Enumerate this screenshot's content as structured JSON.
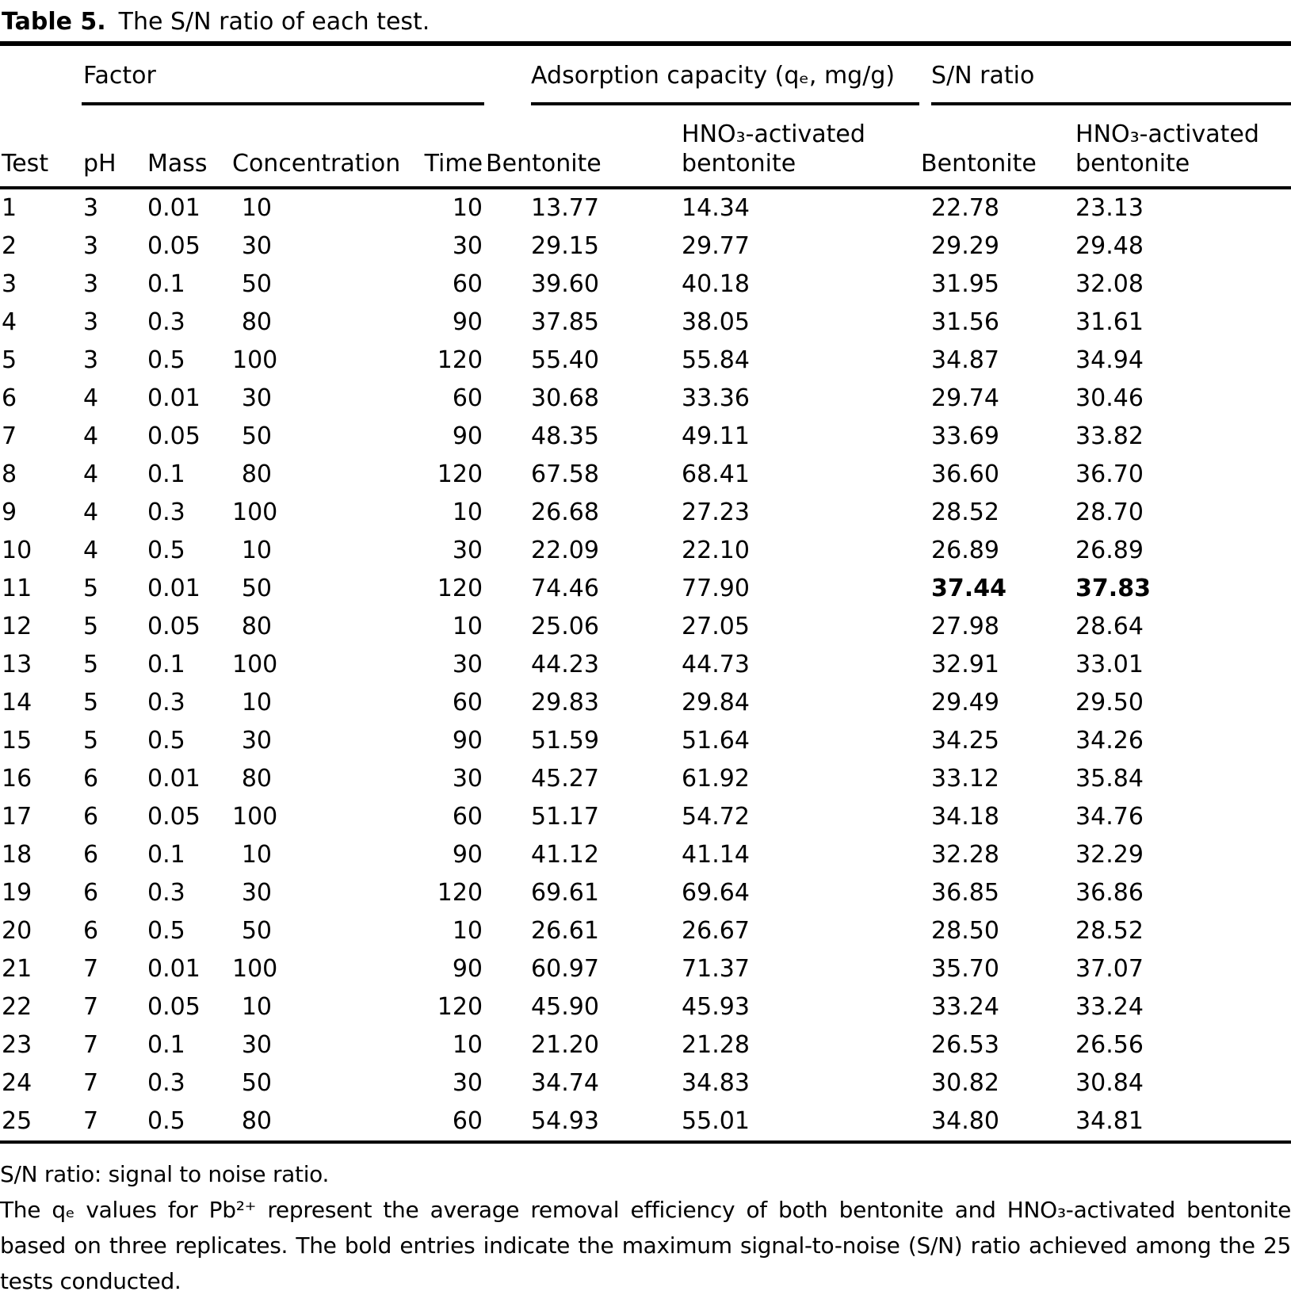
{
  "title": {
    "label": "Table 5.",
    "caption": "The S/N ratio of each test."
  },
  "table": {
    "group_headers": {
      "factor": "Factor",
      "adsorption": "Adsorption capacity (qₑ, mg/g)",
      "sn": "S/N ratio"
    },
    "columns": [
      "Test",
      "pH",
      "Mass",
      "Concentration",
      "Time",
      "Bentonite",
      "HNO₃-activated bentonite",
      "Bentonite",
      "HNO₃-activated bentonite"
    ],
    "max_sn_test": 11,
    "rows": [
      [
        "1",
        "3",
        "0.01",
        "10",
        "10",
        "13.77",
        "14.34",
        "22.78",
        "23.13"
      ],
      [
        "2",
        "3",
        "0.05",
        "30",
        "30",
        "29.15",
        "29.77",
        "29.29",
        "29.48"
      ],
      [
        "3",
        "3",
        "0.1",
        "50",
        "60",
        "39.60",
        "40.18",
        "31.95",
        "32.08"
      ],
      [
        "4",
        "3",
        "0.3",
        "80",
        "90",
        "37.85",
        "38.05",
        "31.56",
        "31.61"
      ],
      [
        "5",
        "3",
        "0.5",
        "100",
        "120",
        "55.40",
        "55.84",
        "34.87",
        "34.94"
      ],
      [
        "6",
        "4",
        "0.01",
        "30",
        "60",
        "30.68",
        "33.36",
        "29.74",
        "30.46"
      ],
      [
        "7",
        "4",
        "0.05",
        "50",
        "90",
        "48.35",
        "49.11",
        "33.69",
        "33.82"
      ],
      [
        "8",
        "4",
        "0.1",
        "80",
        "120",
        "67.58",
        "68.41",
        "36.60",
        "36.70"
      ],
      [
        "9",
        "4",
        "0.3",
        "100",
        "10",
        "26.68",
        "27.23",
        "28.52",
        "28.70"
      ],
      [
        "10",
        "4",
        "0.5",
        "10",
        "30",
        "22.09",
        "22.10",
        "26.89",
        "26.89"
      ],
      [
        "11",
        "5",
        "0.01",
        "50",
        "120",
        "74.46",
        "77.90",
        "37.44",
        "37.83"
      ],
      [
        "12",
        "5",
        "0.05",
        "80",
        "10",
        "25.06",
        "27.05",
        "27.98",
        "28.64"
      ],
      [
        "13",
        "5",
        "0.1",
        "100",
        "30",
        "44.23",
        "44.73",
        "32.91",
        "33.01"
      ],
      [
        "14",
        "5",
        "0.3",
        "10",
        "60",
        "29.83",
        "29.84",
        "29.49",
        "29.50"
      ],
      [
        "15",
        "5",
        "0.5",
        "30",
        "90",
        "51.59",
        "51.64",
        "34.25",
        "34.26"
      ],
      [
        "16",
        "6",
        "0.01",
        "80",
        "30",
        "45.27",
        "61.92",
        "33.12",
        "35.84"
      ],
      [
        "17",
        "6",
        "0.05",
        "100",
        "60",
        "51.17",
        "54.72",
        "34.18",
        "34.76"
      ],
      [
        "18",
        "6",
        "0.1",
        "10",
        "90",
        "41.12",
        "41.14",
        "32.28",
        "32.29"
      ],
      [
        "19",
        "6",
        "0.3",
        "30",
        "120",
        "69.61",
        "69.64",
        "36.85",
        "36.86"
      ],
      [
        "20",
        "6",
        "0.5",
        "50",
        "10",
        "26.61",
        "26.67",
        "28.50",
        "28.52"
      ],
      [
        "21",
        "7",
        "0.01",
        "100",
        "90",
        "60.97",
        "71.37",
        "35.70",
        "37.07"
      ],
      [
        "22",
        "7",
        "0.05",
        "10",
        "120",
        "45.90",
        "45.93",
        "33.24",
        "33.24"
      ],
      [
        "23",
        "7",
        "0.1",
        "30",
        "10",
        "21.20",
        "21.28",
        "26.53",
        "26.56"
      ],
      [
        "24",
        "7",
        "0.3",
        "50",
        "30",
        "34.74",
        "34.83",
        "30.82",
        "30.84"
      ],
      [
        "25",
        "7",
        "0.5",
        "80",
        "60",
        "54.93",
        "55.01",
        "34.80",
        "34.81"
      ]
    ]
  },
  "footnotes": {
    "line1": "S/N ratio: signal to noise ratio.",
    "line2": "The qₑ values for Pb²⁺ represent the average removal efficiency of both bentonite and HNO₃-activated bentonite based on three replicates. The bold entries indicate the maximum signal-to-noise (S/N) ratio achieved among the 25 tests conducted."
  }
}
